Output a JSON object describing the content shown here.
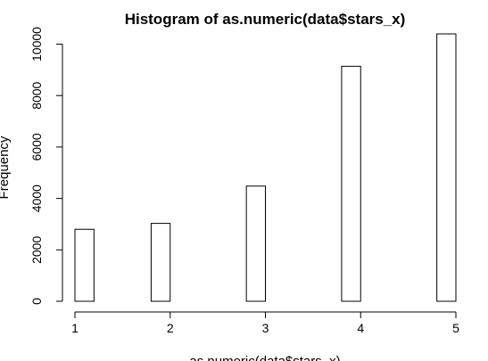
{
  "chart_data": {
    "type": "bar",
    "title": "Histogram of as.numeric(data$stars_x)",
    "xlabel": "as.numeric(data$stars_x)",
    "ylabel": "Frequency",
    "xlim": [
      1,
      5
    ],
    "ylim": [
      0,
      10400
    ],
    "x_ticks": [
      "1",
      "2",
      "3",
      "4",
      "5"
    ],
    "y_ticks": [
      "0",
      "2000",
      "4000",
      "6000",
      "8000",
      "10000"
    ],
    "bin_width": 0.2,
    "bins": [
      {
        "start": 1.0,
        "end": 1.2,
        "value": 2800
      },
      {
        "start": 1.2,
        "end": 1.4,
        "value": 0
      },
      {
        "start": 1.4,
        "end": 1.6,
        "value": 0
      },
      {
        "start": 1.6,
        "end": 1.8,
        "value": 0
      },
      {
        "start": 1.8,
        "end": 2.0,
        "value": 3030
      },
      {
        "start": 2.0,
        "end": 2.2,
        "value": 0
      },
      {
        "start": 2.2,
        "end": 2.4,
        "value": 0
      },
      {
        "start": 2.4,
        "end": 2.6,
        "value": 0
      },
      {
        "start": 2.6,
        "end": 2.8,
        "value": 0
      },
      {
        "start": 2.8,
        "end": 3.0,
        "value": 4480
      },
      {
        "start": 3.0,
        "end": 3.2,
        "value": 0
      },
      {
        "start": 3.2,
        "end": 3.4,
        "value": 0
      },
      {
        "start": 3.4,
        "end": 3.6,
        "value": 0
      },
      {
        "start": 3.6,
        "end": 3.8,
        "value": 0
      },
      {
        "start": 3.8,
        "end": 4.0,
        "value": 9140
      },
      {
        "start": 4.0,
        "end": 4.2,
        "value": 0
      },
      {
        "start": 4.2,
        "end": 4.4,
        "value": 0
      },
      {
        "start": 4.4,
        "end": 4.6,
        "value": 0
      },
      {
        "start": 4.6,
        "end": 4.8,
        "value": 0
      },
      {
        "start": 4.8,
        "end": 5.0,
        "value": 10400
      }
    ],
    "grid": false,
    "legend": "none"
  }
}
